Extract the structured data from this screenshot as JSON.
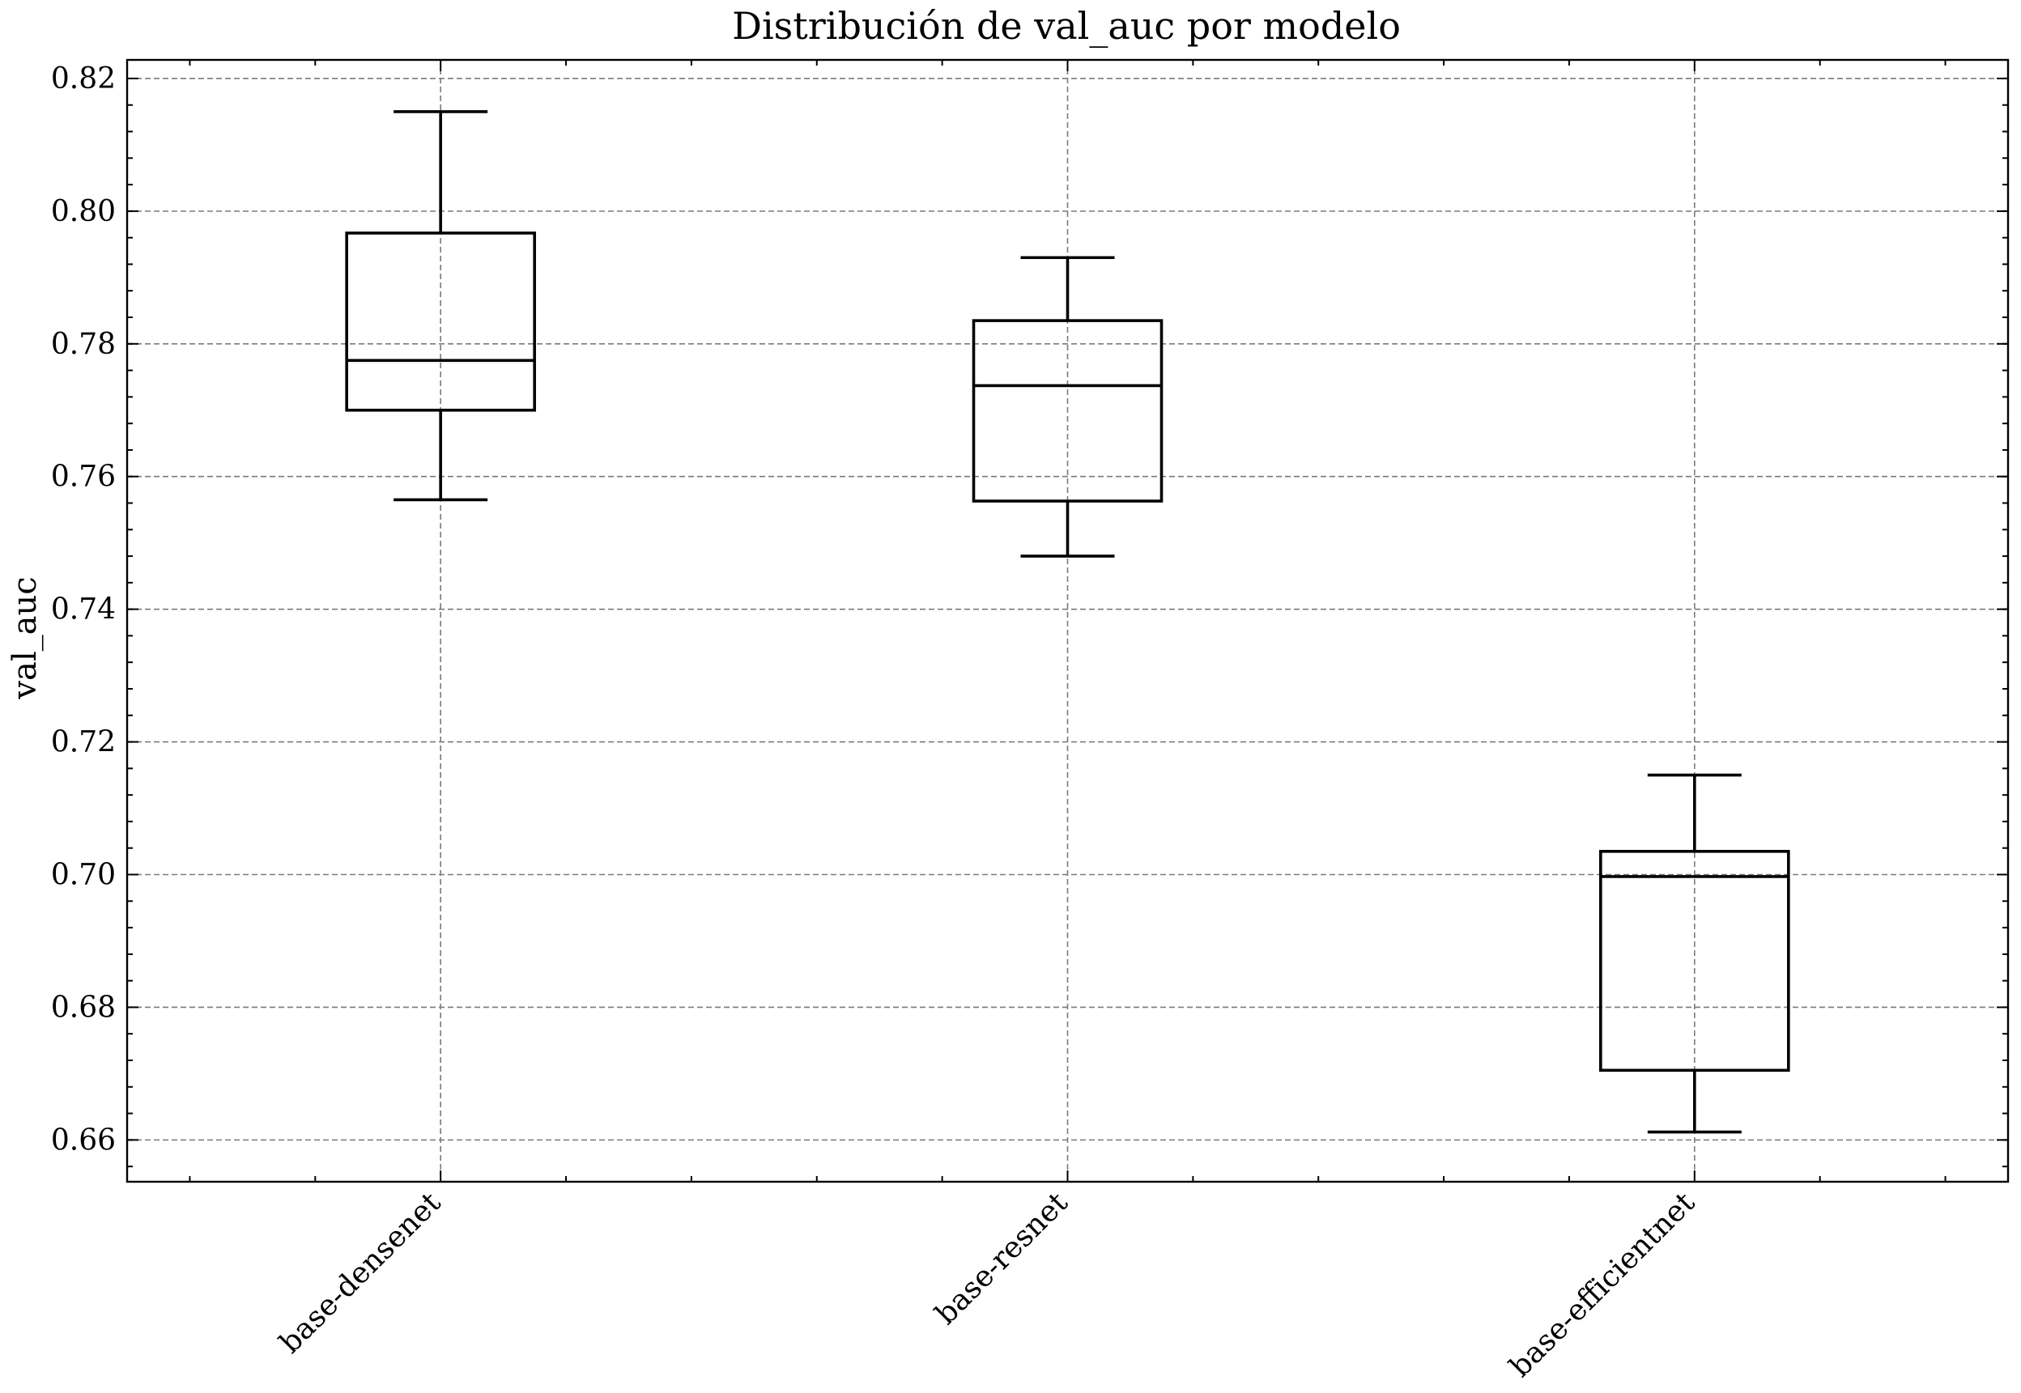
{
  "chart_data": {
    "type": "boxplot",
    "title": "Distribución de val_auc por modelo",
    "xlabel": "",
    "ylabel": "val_auc",
    "categories": [
      "base-densenet",
      "base-resnet",
      "base-efficientnet"
    ],
    "boxes": [
      {
        "name": "base-densenet",
        "whisker_low": 0.7565,
        "q1": 0.77,
        "median": 0.7775,
        "q3": 0.7967,
        "whisker_high": 0.815
      },
      {
        "name": "base-resnet",
        "whisker_low": 0.748,
        "q1": 0.7563,
        "median": 0.7737,
        "q3": 0.7835,
        "whisker_high": 0.793
      },
      {
        "name": "base-efficientnet",
        "whisker_low": 0.6612,
        "q1": 0.6705,
        "median": 0.6997,
        "q3": 0.7035,
        "whisker_high": 0.715
      }
    ],
    "yticks": [
      "0.66",
      "0.68",
      "0.70",
      "0.72",
      "0.74",
      "0.76",
      "0.78",
      "0.80",
      "0.82"
    ],
    "ylim": [
      0.6537,
      0.8228
    ],
    "grid": true,
    "colors": {
      "box": "#000000",
      "grid": "#7a7a7a",
      "background": "#ffffff"
    }
  }
}
